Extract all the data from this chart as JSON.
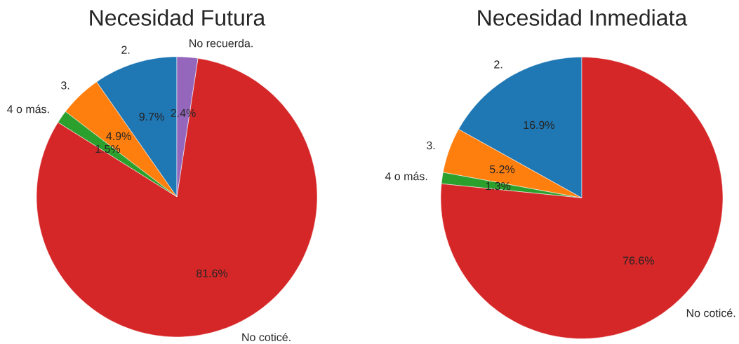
{
  "chart_data": [
    {
      "type": "pie",
      "title": "Necesidad Futura",
      "categories": [
        "2.",
        "3.",
        "4 o más.",
        "No coticé.",
        "No recuerda."
      ],
      "values": [
        9.7,
        4.9,
        1.5,
        81.6,
        2.4
      ],
      "colors": [
        "#1f77b4",
        "#ff7f0e",
        "#2ca02c",
        "#d62728",
        "#9467bd"
      ],
      "value_labels": [
        "9.7%",
        "4.9%",
        "1.5%",
        "81.6%",
        "2.4%"
      ]
    },
    {
      "type": "pie",
      "title": "Necesidad Inmediata",
      "categories": [
        "2.",
        "3.",
        "4 o más.",
        "No coticé."
      ],
      "values": [
        16.9,
        5.2,
        1.3,
        76.6
      ],
      "colors": [
        "#1f77b4",
        "#ff7f0e",
        "#2ca02c",
        "#d62728"
      ],
      "value_labels": [
        "16.9%",
        "5.2%",
        "1.3%",
        "76.6%"
      ]
    }
  ]
}
